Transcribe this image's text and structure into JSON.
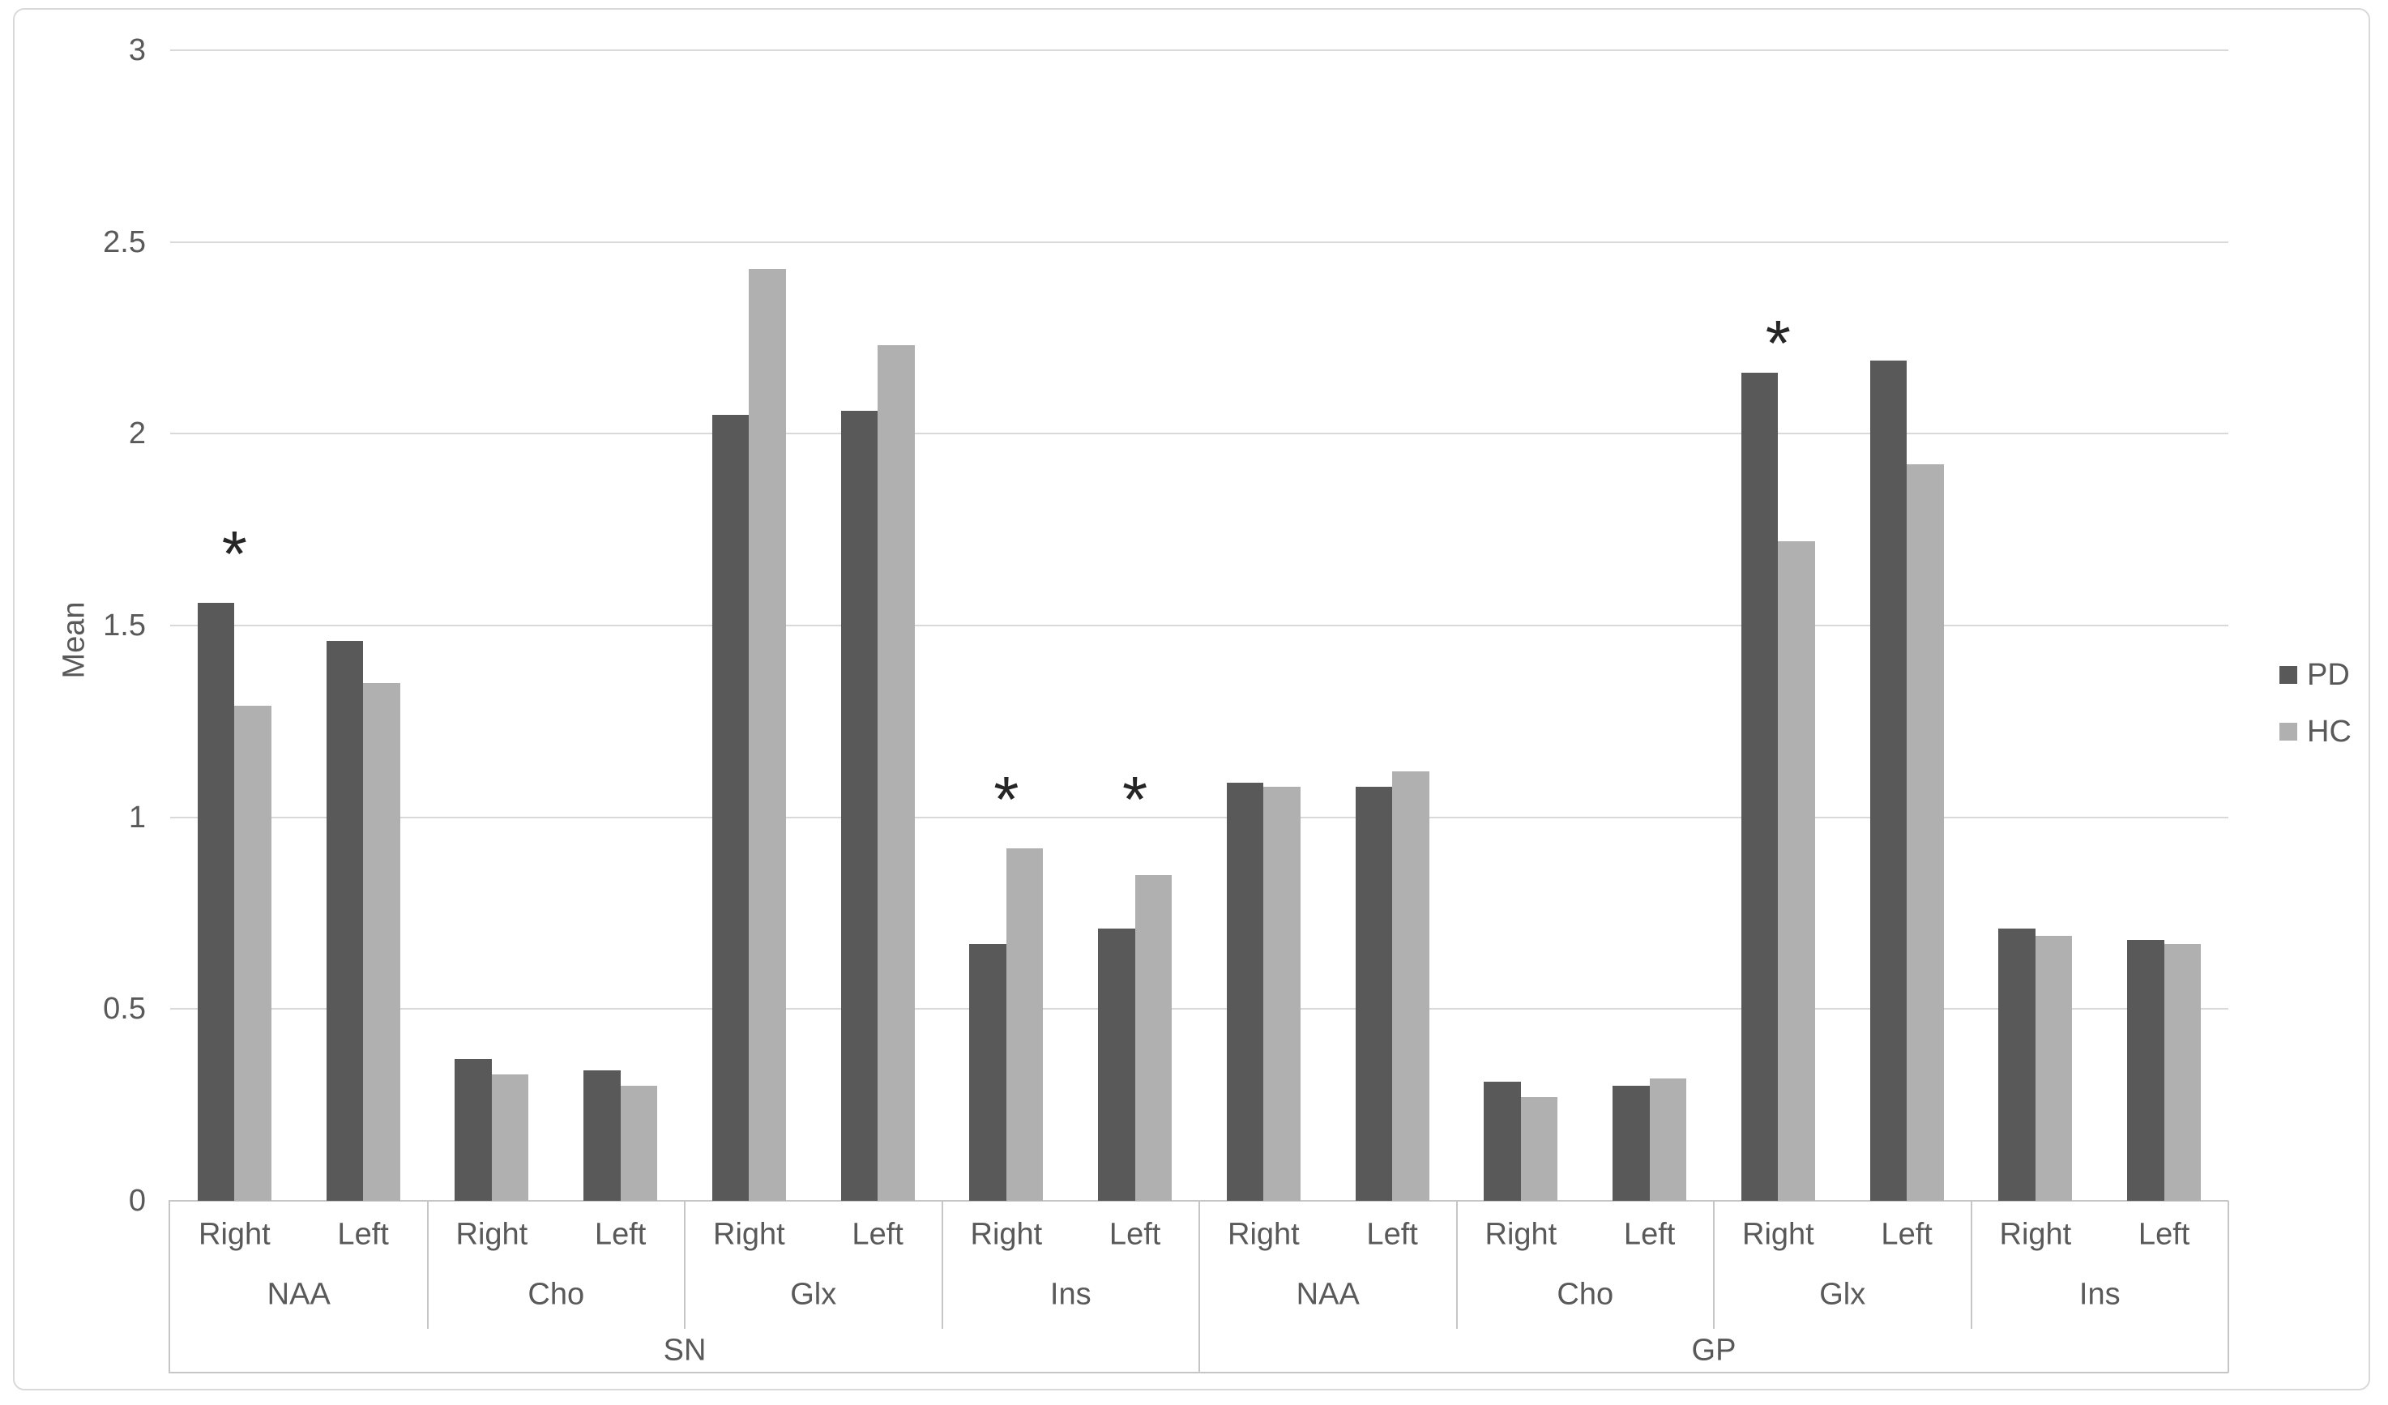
{
  "y_axis": {
    "label": "Mean",
    "ticks": [
      "0",
      "0.5",
      "1",
      "1.5",
      "2",
      "2.5",
      "3"
    ],
    "min": 0,
    "max": 3
  },
  "legend": {
    "position": "right",
    "items": [
      {
        "label": "PD",
        "color": "#595959"
      },
      {
        "label": "HC",
        "color": "#b0b0b0"
      }
    ]
  },
  "significance_marker": "*",
  "colors": {
    "pd_bar": "#595959",
    "hc_bar": "#b0b0b0",
    "gridline": "#d9d9d9",
    "axis_line": "#c6c6c6",
    "text": "#595959",
    "asterisk": "#262626",
    "chart_border": "#d9d9d9"
  },
  "chart_data": {
    "type": "bar",
    "title": "",
    "xlabel": "",
    "ylabel": "Mean",
    "ylim": [
      0,
      3
    ],
    "grid": true,
    "legend_position": "right",
    "series": [
      {
        "name": "PD",
        "color": "#595959"
      },
      {
        "name": "HC",
        "color": "#b0b0b0"
      }
    ],
    "regions": [
      {
        "label": "SN",
        "metabolites": [
          {
            "label": "NAA",
            "sides": [
              {
                "label": "Right",
                "values": {
                  "PD": 1.56,
                  "HC": 1.29
                },
                "significant": true,
                "sig_y": 1.72
              },
              {
                "label": "Left",
                "values": {
                  "PD": 1.46,
                  "HC": 1.35
                },
                "significant": false
              }
            ]
          },
          {
            "label": "Cho",
            "sides": [
              {
                "label": "Right",
                "values": {
                  "PD": 0.37,
                  "HC": 0.33
                },
                "significant": false
              },
              {
                "label": "Left",
                "values": {
                  "PD": 0.34,
                  "HC": 0.3
                },
                "significant": false
              }
            ]
          },
          {
            "label": "Glx",
            "sides": [
              {
                "label": "Right",
                "values": {
                  "PD": 2.05,
                  "HC": 2.43
                },
                "significant": false
              },
              {
                "label": "Left",
                "values": {
                  "PD": 2.06,
                  "HC": 2.23
                },
                "significant": false
              }
            ]
          },
          {
            "label": "Ins",
            "sides": [
              {
                "label": "Right",
                "values": {
                  "PD": 0.67,
                  "HC": 0.92
                },
                "significant": true,
                "sig_y": 1.08
              },
              {
                "label": "Left",
                "values": {
                  "PD": 0.71,
                  "HC": 0.85
                },
                "significant": true,
                "sig_y": 1.08
              }
            ]
          }
        ]
      },
      {
        "label": "GP",
        "metabolites": [
          {
            "label": "NAA",
            "sides": [
              {
                "label": "Right",
                "values": {
                  "PD": 1.09,
                  "HC": 1.08
                },
                "significant": false
              },
              {
                "label": "Left",
                "values": {
                  "PD": 1.08,
                  "HC": 1.12
                },
                "significant": false
              }
            ]
          },
          {
            "label": "Cho",
            "sides": [
              {
                "label": "Right",
                "values": {
                  "PD": 0.31,
                  "HC": 0.27
                },
                "significant": false
              },
              {
                "label": "Left",
                "values": {
                  "PD": 0.3,
                  "HC": 0.32
                },
                "significant": false
              }
            ]
          },
          {
            "label": "Glx",
            "sides": [
              {
                "label": "Right",
                "values": {
                  "PD": 2.16,
                  "HC": 1.72
                },
                "significant": true,
                "sig_y": 2.27
              },
              {
                "label": "Left",
                "values": {
                  "PD": 2.19,
                  "HC": 1.92
                },
                "significant": false
              }
            ]
          },
          {
            "label": "Ins",
            "sides": [
              {
                "label": "Right",
                "values": {
                  "PD": 0.71,
                  "HC": 0.69
                },
                "significant": false
              },
              {
                "label": "Left",
                "values": {
                  "PD": 0.68,
                  "HC": 0.67
                },
                "significant": false
              }
            ]
          }
        ]
      }
    ]
  }
}
